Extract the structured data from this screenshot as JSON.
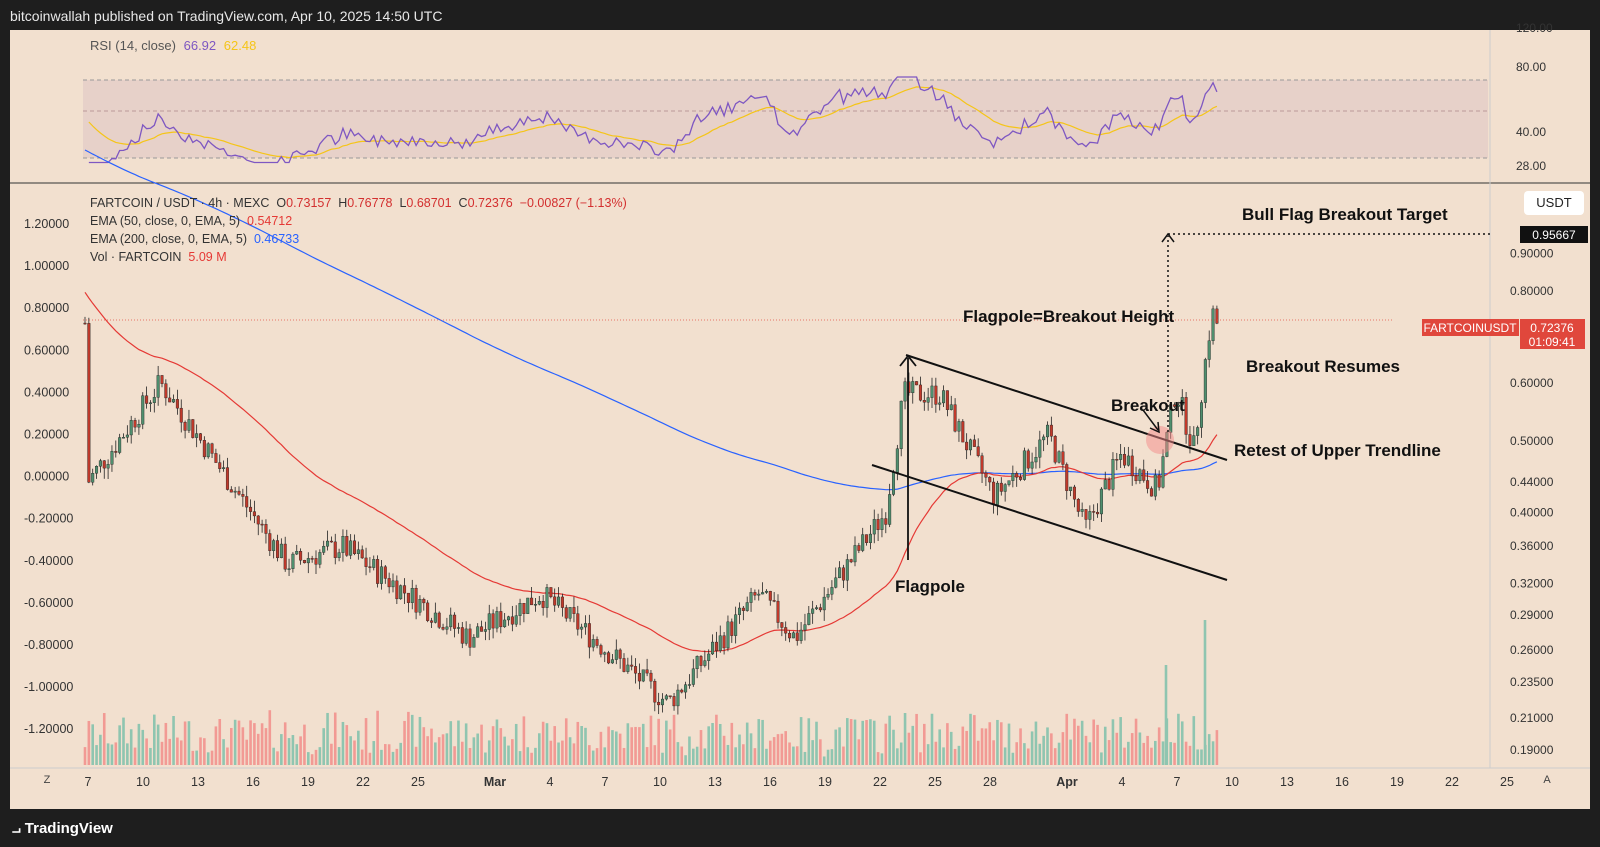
{
  "header": {
    "publish_line": "bitcoinwallah published on TradingView.com, Apr 10, 2025 14:50 UTC"
  },
  "footer": {
    "brand": "TradingView"
  },
  "rsi": {
    "label": "RSI (14, close)",
    "value_rsi": "66.92",
    "value_ma": "62.48",
    "axis_ticks": [
      "120.00",
      "80.00",
      "40.00",
      "28.00"
    ],
    "colors": {
      "rsi": "#7e57c2",
      "ma": "#f5c518",
      "band": "#e8cccc"
    }
  },
  "legend": {
    "symbol_line": "FARTCOIN / USDT · 4h · MEXC",
    "o_label": "O",
    "o": "0.73157",
    "h_label": "H",
    "h": "0.76778",
    "l_label": "L",
    "l": "0.68701",
    "c_label": "C",
    "c": "0.72376",
    "change": "−0.00827 (−1.13%)",
    "ema50_label": "EMA (50, close, 0, EMA, 5)",
    "ema50_value": "0.54712",
    "ema200_label": "EMA (200, close, 0, EMA, 5)",
    "ema200_value": "0.46733",
    "vol_label": "Vol · FARTCOIN",
    "vol_value": "5.09 M"
  },
  "toolbar": {
    "currency_button": "USDT",
    "z_button": "Z",
    "a_button": "A"
  },
  "price_tags": {
    "target": "0.95667",
    "symbol_tag": "FARTCOINUSDT",
    "last_price": "0.72376",
    "countdown": "01:09:41"
  },
  "colors": {
    "background": "#f2e0cf",
    "up_candle": "#4f8f6e",
    "down_candle": "#c0392b",
    "ema50": "#e53935",
    "ema200": "#2962ff",
    "vol_up": "#8fc5b0",
    "vol_down": "#f29a94",
    "tag_red": "#e0473c"
  },
  "annotations": {
    "bull_flag_target": "Bull Flag Breakout Target",
    "flagpole_height": "Flagpole=Breakout Height",
    "breakout_resumes": "Breakout Resumes",
    "breakout": "Breakout",
    "retest": "Retest of Upper Trendline",
    "flagpole": "Flagpole"
  },
  "chart_data": {
    "type": "candlestick",
    "title": "FARTCOIN / USDT · 4h · MEXC",
    "right_axis_ticks": [
      "0.90000",
      "0.80000",
      "0.60000",
      "0.50000",
      "0.44000",
      "0.40000",
      "0.36000",
      "0.32000",
      "0.29000",
      "0.26000",
      "0.23500",
      "0.21000",
      "0.19000"
    ],
    "left_axis_ticks": [
      "1.20000",
      "1.00000",
      "0.80000",
      "0.60000",
      "0.40000",
      "0.20000",
      "0.00000",
      "-0.20000",
      "-0.40000",
      "-0.60000",
      "-0.80000",
      "-1.00000",
      "-1.20000"
    ],
    "x_tick_labels": [
      "7",
      "10",
      "13",
      "16",
      "19",
      "22",
      "25",
      "Mar",
      "4",
      "7",
      "10",
      "13",
      "16",
      "19",
      "22",
      "25",
      "28",
      "Apr",
      "4",
      "7",
      "10",
      "13",
      "16",
      "19",
      "22",
      "25"
    ],
    "price_scale": "log",
    "grid": false,
    "keypoints": [
      {
        "date": "Feb 7",
        "price": 0.44
      },
      {
        "date": "Feb 11",
        "price": 0.6
      },
      {
        "date": "Feb 18",
        "price": 0.34
      },
      {
        "date": "Feb 21",
        "price": 0.36
      },
      {
        "date": "Feb 28",
        "price": 0.27
      },
      {
        "date": "Mar 4",
        "price": 0.31
      },
      {
        "date": "Mar 11",
        "price": 0.22
      },
      {
        "date": "Mar 16",
        "price": 0.31
      },
      {
        "date": "Mar 18",
        "price": 0.27
      },
      {
        "date": "Mar 23",
        "price": 0.4
      },
      {
        "date": "Mar 24",
        "price": 0.58
      },
      {
        "date": "Mar 26",
        "price": 0.58
      },
      {
        "date": "Mar 29",
        "price": 0.42
      },
      {
        "date": "Apr 1",
        "price": 0.51
      },
      {
        "date": "Apr 3",
        "price": 0.38
      },
      {
        "date": "Apr 5",
        "price": 0.48
      },
      {
        "date": "Apr 7",
        "price": 0.43
      },
      {
        "date": "Apr 8",
        "price": 0.59
      },
      {
        "date": "Apr 9",
        "price": 0.49
      },
      {
        "date": "Apr 10",
        "price": 0.75
      },
      {
        "date": "Apr 10",
        "price": 0.72376
      }
    ],
    "target_price": 0.95667,
    "rsi_latest": 66.92,
    "rsi_ma_latest": 62.48
  }
}
